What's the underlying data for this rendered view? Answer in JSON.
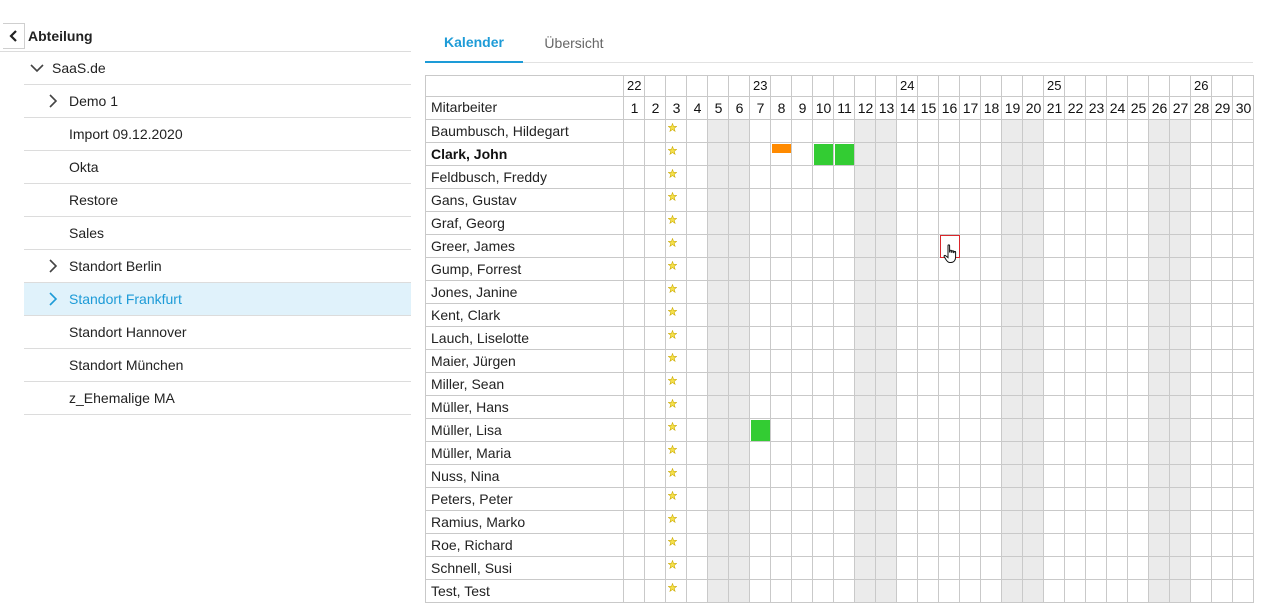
{
  "sidebar": {
    "back_icon": "chevron-left-icon",
    "title": "Abteilung",
    "items": [
      {
        "label": "SaaS.de",
        "level": 0,
        "icon": "chevron-down-icon",
        "selected": false
      },
      {
        "label": "Demo 1",
        "level": 1,
        "icon": "chevron-right-icon",
        "selected": false
      },
      {
        "label": "Import 09.12.2020",
        "level": 1,
        "icon": "",
        "selected": false
      },
      {
        "label": "Okta",
        "level": 1,
        "icon": "",
        "selected": false
      },
      {
        "label": "Restore",
        "level": 1,
        "icon": "",
        "selected": false
      },
      {
        "label": "Sales",
        "level": 1,
        "icon": "",
        "selected": false
      },
      {
        "label": "Standort Berlin",
        "level": 1,
        "icon": "chevron-right-icon",
        "selected": false
      },
      {
        "label": "Standort Frankfurt",
        "level": 1,
        "icon": "chevron-right-icon",
        "selected": true
      },
      {
        "label": "Standort Hannover",
        "level": 1,
        "icon": "",
        "selected": false
      },
      {
        "label": "Standort München",
        "level": 1,
        "icon": "",
        "selected": false
      },
      {
        "label": "z_Ehemalige MA",
        "level": 1,
        "icon": "",
        "selected": false
      }
    ]
  },
  "tabs": [
    {
      "label": "Kalender",
      "active": true
    },
    {
      "label": "Übersicht",
      "active": false
    }
  ],
  "calendar": {
    "employee_header": "Mitarbeiter",
    "weeks": [
      {
        "label": "22",
        "start_day": 1
      },
      {
        "label": "23",
        "start_day": 7
      },
      {
        "label": "24",
        "start_day": 14
      },
      {
        "label": "25",
        "start_day": 21
      },
      {
        "label": "26",
        "start_day": 28
      }
    ],
    "days": [
      1,
      2,
      3,
      4,
      5,
      6,
      7,
      8,
      9,
      10,
      11,
      12,
      13,
      14,
      15,
      16,
      17,
      18,
      19,
      20,
      21,
      22,
      23,
      24,
      25,
      26,
      27,
      28,
      29,
      30
    ],
    "weekend_days": [
      5,
      6,
      12,
      13,
      19,
      20,
      26,
      27
    ],
    "holiday_day": 3,
    "holiday_icon": "star-icon",
    "employees": [
      {
        "name": "Baumbusch, Hildegart",
        "bold": false
      },
      {
        "name": "Clark, John",
        "bold": true
      },
      {
        "name": "Feldbusch, Freddy",
        "bold": false
      },
      {
        "name": "Gans, Gustav",
        "bold": false
      },
      {
        "name": "Graf, Georg",
        "bold": false
      },
      {
        "name": "Greer, James",
        "bold": false
      },
      {
        "name": "Gump, Forrest",
        "bold": false
      },
      {
        "name": "Jones, Janine",
        "bold": false
      },
      {
        "name": "Kent, Clark",
        "bold": false
      },
      {
        "name": "Lauch, Liselotte",
        "bold": false
      },
      {
        "name": "Maier, Jürgen",
        "bold": false
      },
      {
        "name": "Miller, Sean",
        "bold": false
      },
      {
        "name": "Müller, Hans",
        "bold": false
      },
      {
        "name": "Müller, Lisa",
        "bold": false
      },
      {
        "name": "Müller, Maria",
        "bold": false
      },
      {
        "name": "Nuss, Nina",
        "bold": false
      },
      {
        "name": "Peters, Peter",
        "bold": false
      },
      {
        "name": "Ramius, Marko",
        "bold": false
      },
      {
        "name": "Roe, Richard",
        "bold": false
      },
      {
        "name": "Schnell, Susi",
        "bold": false
      },
      {
        "name": "Test, Test",
        "bold": false
      }
    ],
    "entries": [
      {
        "row": 1,
        "day": 8,
        "kind": "half",
        "color": "#ff8a00"
      },
      {
        "row": 1,
        "day": 10,
        "kind": "full",
        "color": "#33cc33"
      },
      {
        "row": 1,
        "day": 11,
        "kind": "full",
        "color": "#33cc33"
      },
      {
        "row": 13,
        "day": 7,
        "kind": "full",
        "color": "#33cc33"
      }
    ],
    "hover": {
      "row": 5,
      "day": 16,
      "border_color": "#d9262b",
      "icon": "hand-pointer-icon"
    }
  },
  "colors": {
    "accent": "#1d9bd7",
    "selected_bg": "#e0f2fb",
    "weekend_bg": "#ebebeb",
    "grid_line": "#c9c9c9",
    "star": "#e8c800"
  }
}
